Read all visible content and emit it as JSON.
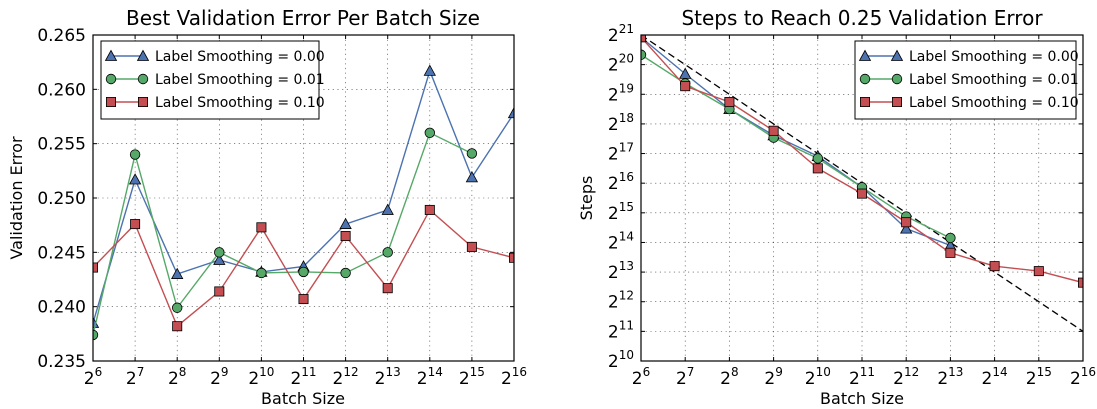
{
  "chart_data": [
    {
      "type": "line",
      "title": "Best Validation Error Per Batch Size",
      "xlabel": "Batch Size",
      "ylabel": "Validation Error",
      "x_scale": "log2",
      "x_tick_base": "2",
      "x_tick_exponents": [
        "6",
        "7",
        "8",
        "9",
        "10",
        "11",
        "12",
        "13",
        "14",
        "15",
        "16"
      ],
      "x": [
        64,
        128,
        256,
        512,
        1024,
        2048,
        4096,
        8192,
        16384,
        32768,
        65536
      ],
      "xlim": [
        64,
        65536
      ],
      "ylim": [
        0.235,
        0.265
      ],
      "y_ticks": [
        "0.235",
        "0.240",
        "0.245",
        "0.250",
        "0.255",
        "0.260",
        "0.265"
      ],
      "grid": true,
      "legend_position": "top-left",
      "series": [
        {
          "name": "Label Smoothing = 0.00",
          "color": "#4c72b0",
          "marker": "triangle",
          "values": [
            0.2385,
            0.2517,
            0.243,
            0.2443,
            0.2432,
            0.2437,
            0.2476,
            0.2489,
            0.2617,
            0.2519,
            0.2578
          ]
        },
        {
          "name": "Label Smoothing = 0.01",
          "color": "#55a868",
          "marker": "circle",
          "values": [
            0.2374,
            0.254,
            0.2399,
            0.245,
            0.2431,
            0.2432,
            0.2431,
            0.245,
            0.256,
            0.2541,
            null
          ]
        },
        {
          "name": "Label Smoothing = 0.10",
          "color": "#c44e52",
          "marker": "square",
          "values": [
            0.2436,
            0.2476,
            0.2382,
            0.2414,
            0.2473,
            0.2407,
            0.2465,
            0.2417,
            0.2489,
            0.2455,
            0.2445
          ]
        }
      ]
    },
    {
      "type": "line",
      "title": "Steps to Reach 0.25 Validation Error",
      "xlabel": "Batch Size",
      "ylabel": "Steps",
      "x_scale": "log2",
      "y_scale": "log2",
      "x_tick_base": "2",
      "y_tick_base": "2",
      "x_tick_exponents": [
        "6",
        "7",
        "8",
        "9",
        "10",
        "11",
        "12",
        "13",
        "14",
        "15",
        "16"
      ],
      "y_tick_exponents": [
        "10",
        "11",
        "12",
        "13",
        "14",
        "15",
        "16",
        "17",
        "18",
        "19",
        "20",
        "21"
      ],
      "x": [
        64,
        128,
        256,
        512,
        1024,
        2048,
        4096,
        8192,
        16384,
        32768,
        65536
      ],
      "xlim": [
        64,
        65536
      ],
      "ylim": [
        1024,
        2097152
      ],
      "grid": true,
      "legend_position": "top-right",
      "reference_line": {
        "style": "dashed",
        "color": "#000000",
        "points": [
          [
            64,
            2097152
          ],
          [
            65536,
            2048
          ]
        ]
      },
      "series": [
        {
          "name": "Label Smoothing = 0.00",
          "color": "#4c72b0",
          "marker": "triangle",
          "values": [
            1989149,
            844485,
            370728,
            200636,
            123362,
            59578,
            22631,
            15287,
            null,
            null,
            null
          ]
        },
        {
          "name": "Label Smoothing = 0.01",
          "color": "#55a868",
          "marker": "circle",
          "values": [
            1321122,
            676016,
            370728,
            190217,
            116955,
            59578,
            30048,
            18205,
            null,
            null,
            null
          ]
        },
        {
          "name": "Label Smoothing = 0.10",
          "color": "#c44e52",
          "marker": "square",
          "values": [
            1989149,
            633860,
            437413,
            223358,
            92682,
            51358,
            26280,
            12855,
            9410,
            8384,
            6400
          ]
        }
      ]
    }
  ]
}
